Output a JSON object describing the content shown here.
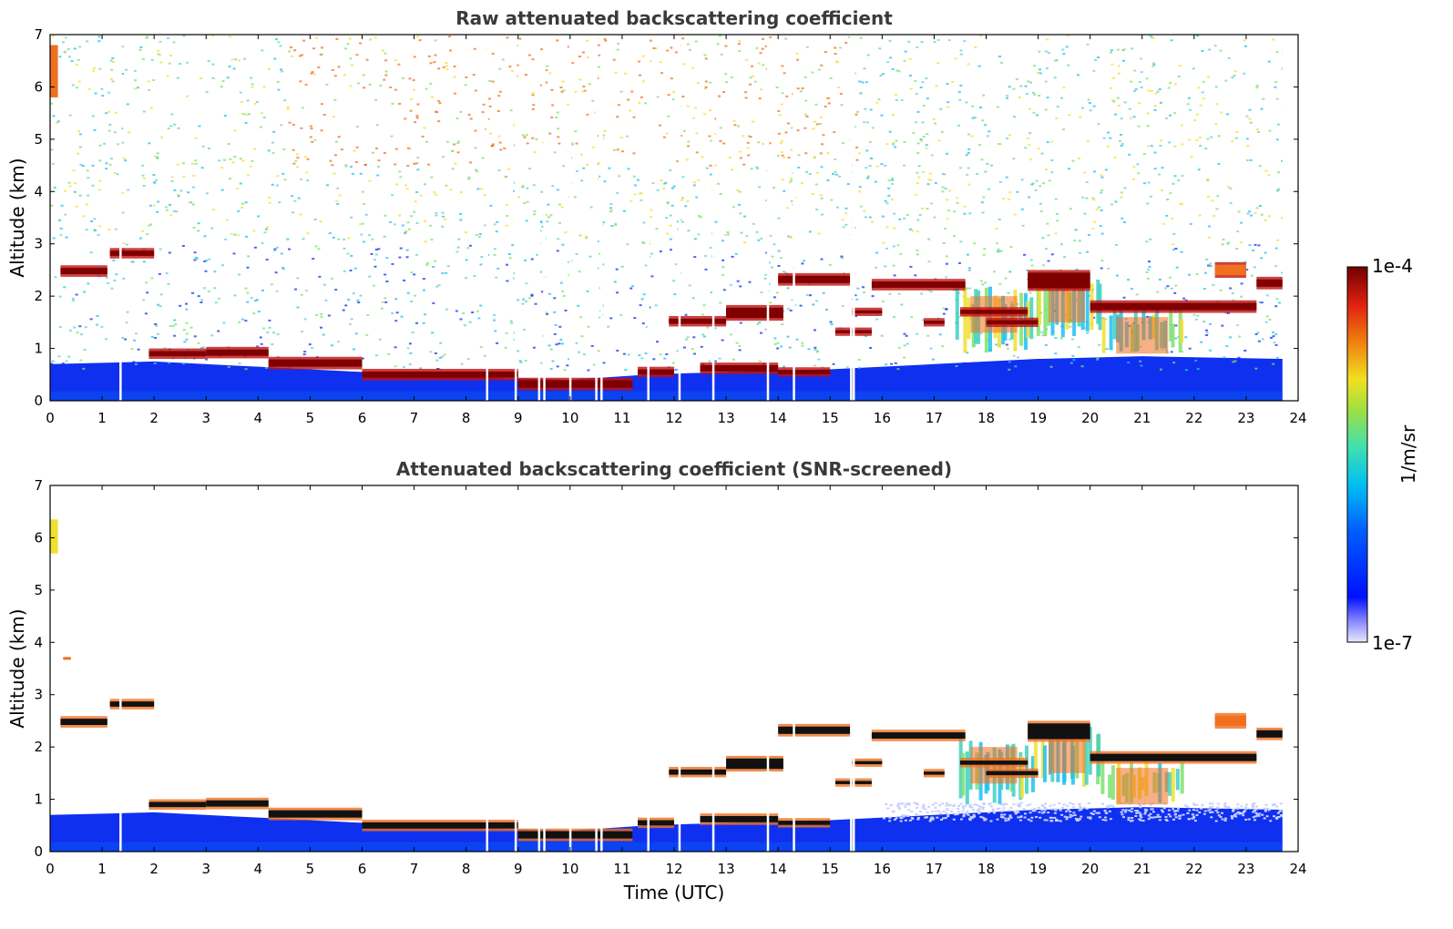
{
  "colors": {
    "white": "#ffffff",
    "low_blue": "#1030f0",
    "mid_cyan": "#20c0f0",
    "green": "#80e070",
    "yellow": "#f0e030",
    "orange": "#f07020",
    "red": "#c01010",
    "dark_red": "#800000",
    "black": "#111111"
  },
  "colorbar": {
    "max_label": "1e-4",
    "min_label": "1e-7",
    "unit": "1/m/sr"
  },
  "chart_data": [
    {
      "type": "heatmap",
      "title": "Raw attenuated backscattering coefficient",
      "xlabel": "",
      "ylabel": "Altitude (km)",
      "xlim": [
        0,
        24
      ],
      "ylim": [
        0,
        7
      ],
      "xticks": [
        "0",
        "1",
        "2",
        "3",
        "4",
        "5",
        "6",
        "7",
        "8",
        "9",
        "10",
        "11",
        "12",
        "13",
        "14",
        "15",
        "16",
        "17",
        "18",
        "19",
        "20",
        "21",
        "22",
        "23",
        "24"
      ],
      "yticks": [
        "0",
        "1",
        "2",
        "3",
        "4",
        "5",
        "6",
        "7"
      ],
      "data_end_time": 23.7,
      "background_noise": "high above boundary layer, strongest 5-15 UTC",
      "layers": [
        {
          "t0": 0.2,
          "t1": 1.1,
          "alt": 2.48,
          "thick": 0.12,
          "color": "dark_red"
        },
        {
          "t0": 1.15,
          "t1": 2.0,
          "alt": 2.82,
          "thick": 0.1,
          "color": "dark_red"
        },
        {
          "t0": 1.9,
          "t1": 3.0,
          "alt": 0.9,
          "thick": 0.1,
          "color": "dark_red"
        },
        {
          "t0": 3.0,
          "t1": 4.2,
          "alt": 0.92,
          "thick": 0.12,
          "color": "dark_red"
        },
        {
          "t0": 4.2,
          "t1": 6.0,
          "alt": 0.72,
          "thick": 0.14,
          "color": "dark_red"
        },
        {
          "t0": 6.0,
          "t1": 9.0,
          "alt": 0.5,
          "thick": 0.12,
          "color": "dark_red"
        },
        {
          "t0": 9.0,
          "t1": 11.2,
          "alt": 0.32,
          "thick": 0.14,
          "color": "dark_red"
        },
        {
          "t0": 11.3,
          "t1": 12.0,
          "alt": 0.55,
          "thick": 0.1,
          "color": "dark_red"
        },
        {
          "t0": 11.9,
          "t1": 13.0,
          "alt": 1.52,
          "thick": 0.1,
          "color": "dark_red"
        },
        {
          "t0": 13.0,
          "t1": 14.1,
          "alt": 1.68,
          "thick": 0.2,
          "color": "dark_red"
        },
        {
          "t0": 12.5,
          "t1": 14.0,
          "alt": 0.62,
          "thick": 0.12,
          "color": "dark_red"
        },
        {
          "t0": 14.0,
          "t1": 15.0,
          "alt": 0.55,
          "thick": 0.08,
          "color": "dark_red"
        },
        {
          "t0": 14.0,
          "t1": 15.4,
          "alt": 2.32,
          "thick": 0.14,
          "color": "dark_red"
        },
        {
          "t0": 15.8,
          "t1": 17.6,
          "alt": 2.22,
          "thick": 0.12,
          "color": "dark_red"
        },
        {
          "t0": 15.4,
          "t1": 16.0,
          "alt": 1.7,
          "thick": 0.06,
          "color": "dark_red"
        },
        {
          "t0": 15.1,
          "t1": 15.8,
          "alt": 1.32,
          "thick": 0.06,
          "color": "dark_red"
        },
        {
          "t0": 16.8,
          "t1": 17.2,
          "alt": 1.5,
          "thick": 0.06,
          "color": "dark_red"
        },
        {
          "t0": 17.5,
          "t1": 18.8,
          "alt": 1.7,
          "thick": 0.08,
          "color": "dark_red"
        },
        {
          "t0": 18.0,
          "t1": 19.0,
          "alt": 1.5,
          "thick": 0.08,
          "color": "dark_red"
        },
        {
          "t0": 18.8,
          "t1": 20.0,
          "alt": 2.3,
          "thick": 0.3,
          "color": "dark_red"
        },
        {
          "t0": 20.0,
          "t1": 23.2,
          "alt": 1.8,
          "thick": 0.14,
          "color": "dark_red"
        },
        {
          "t0": 22.4,
          "t1": 23.0,
          "alt": 2.5,
          "thick": 0.2,
          "color": "orange"
        },
        {
          "t0": 23.2,
          "t1": 23.7,
          "alt": 2.25,
          "thick": 0.14,
          "color": "dark_red"
        }
      ],
      "convection": [
        {
          "t0": 17.4,
          "t1": 18.9,
          "base": 0.9,
          "top": 2.2
        },
        {
          "t0": 18.9,
          "t1": 20.2,
          "base": 1.2,
          "top": 2.4
        },
        {
          "t0": 20.2,
          "t1": 21.8,
          "base": 0.9,
          "top": 1.8
        }
      ],
      "gaps": [
        1.35,
        8.4,
        8.95,
        9.4,
        9.5,
        10.0,
        10.5,
        10.6,
        11.5,
        12.1,
        12.75,
        13.8,
        14.3,
        15.4,
        15.45
      ]
    },
    {
      "type": "heatmap",
      "title": "Attenuated backscattering coefficient (SNR-screened)",
      "xlabel": "Time (UTC)",
      "ylabel": "Altitude (km)",
      "xlim": [
        0,
        24
      ],
      "ylim": [
        0,
        7
      ],
      "xticks": [
        "0",
        "1",
        "2",
        "3",
        "4",
        "5",
        "6",
        "7",
        "8",
        "9",
        "10",
        "11",
        "12",
        "13",
        "14",
        "15",
        "16",
        "17",
        "18",
        "19",
        "20",
        "21",
        "22",
        "23",
        "24"
      ],
      "yticks": [
        "0",
        "1",
        "2",
        "3",
        "4",
        "5",
        "6",
        "7"
      ],
      "data_end_time": 23.7,
      "background_noise": "removed (white)",
      "screened_layer_color": "black",
      "gaps": [
        1.35,
        8.4,
        8.95,
        9.4,
        9.5,
        10.0,
        10.5,
        10.6,
        11.5,
        12.1,
        12.75,
        13.8,
        14.3,
        15.4,
        15.45
      ]
    }
  ]
}
